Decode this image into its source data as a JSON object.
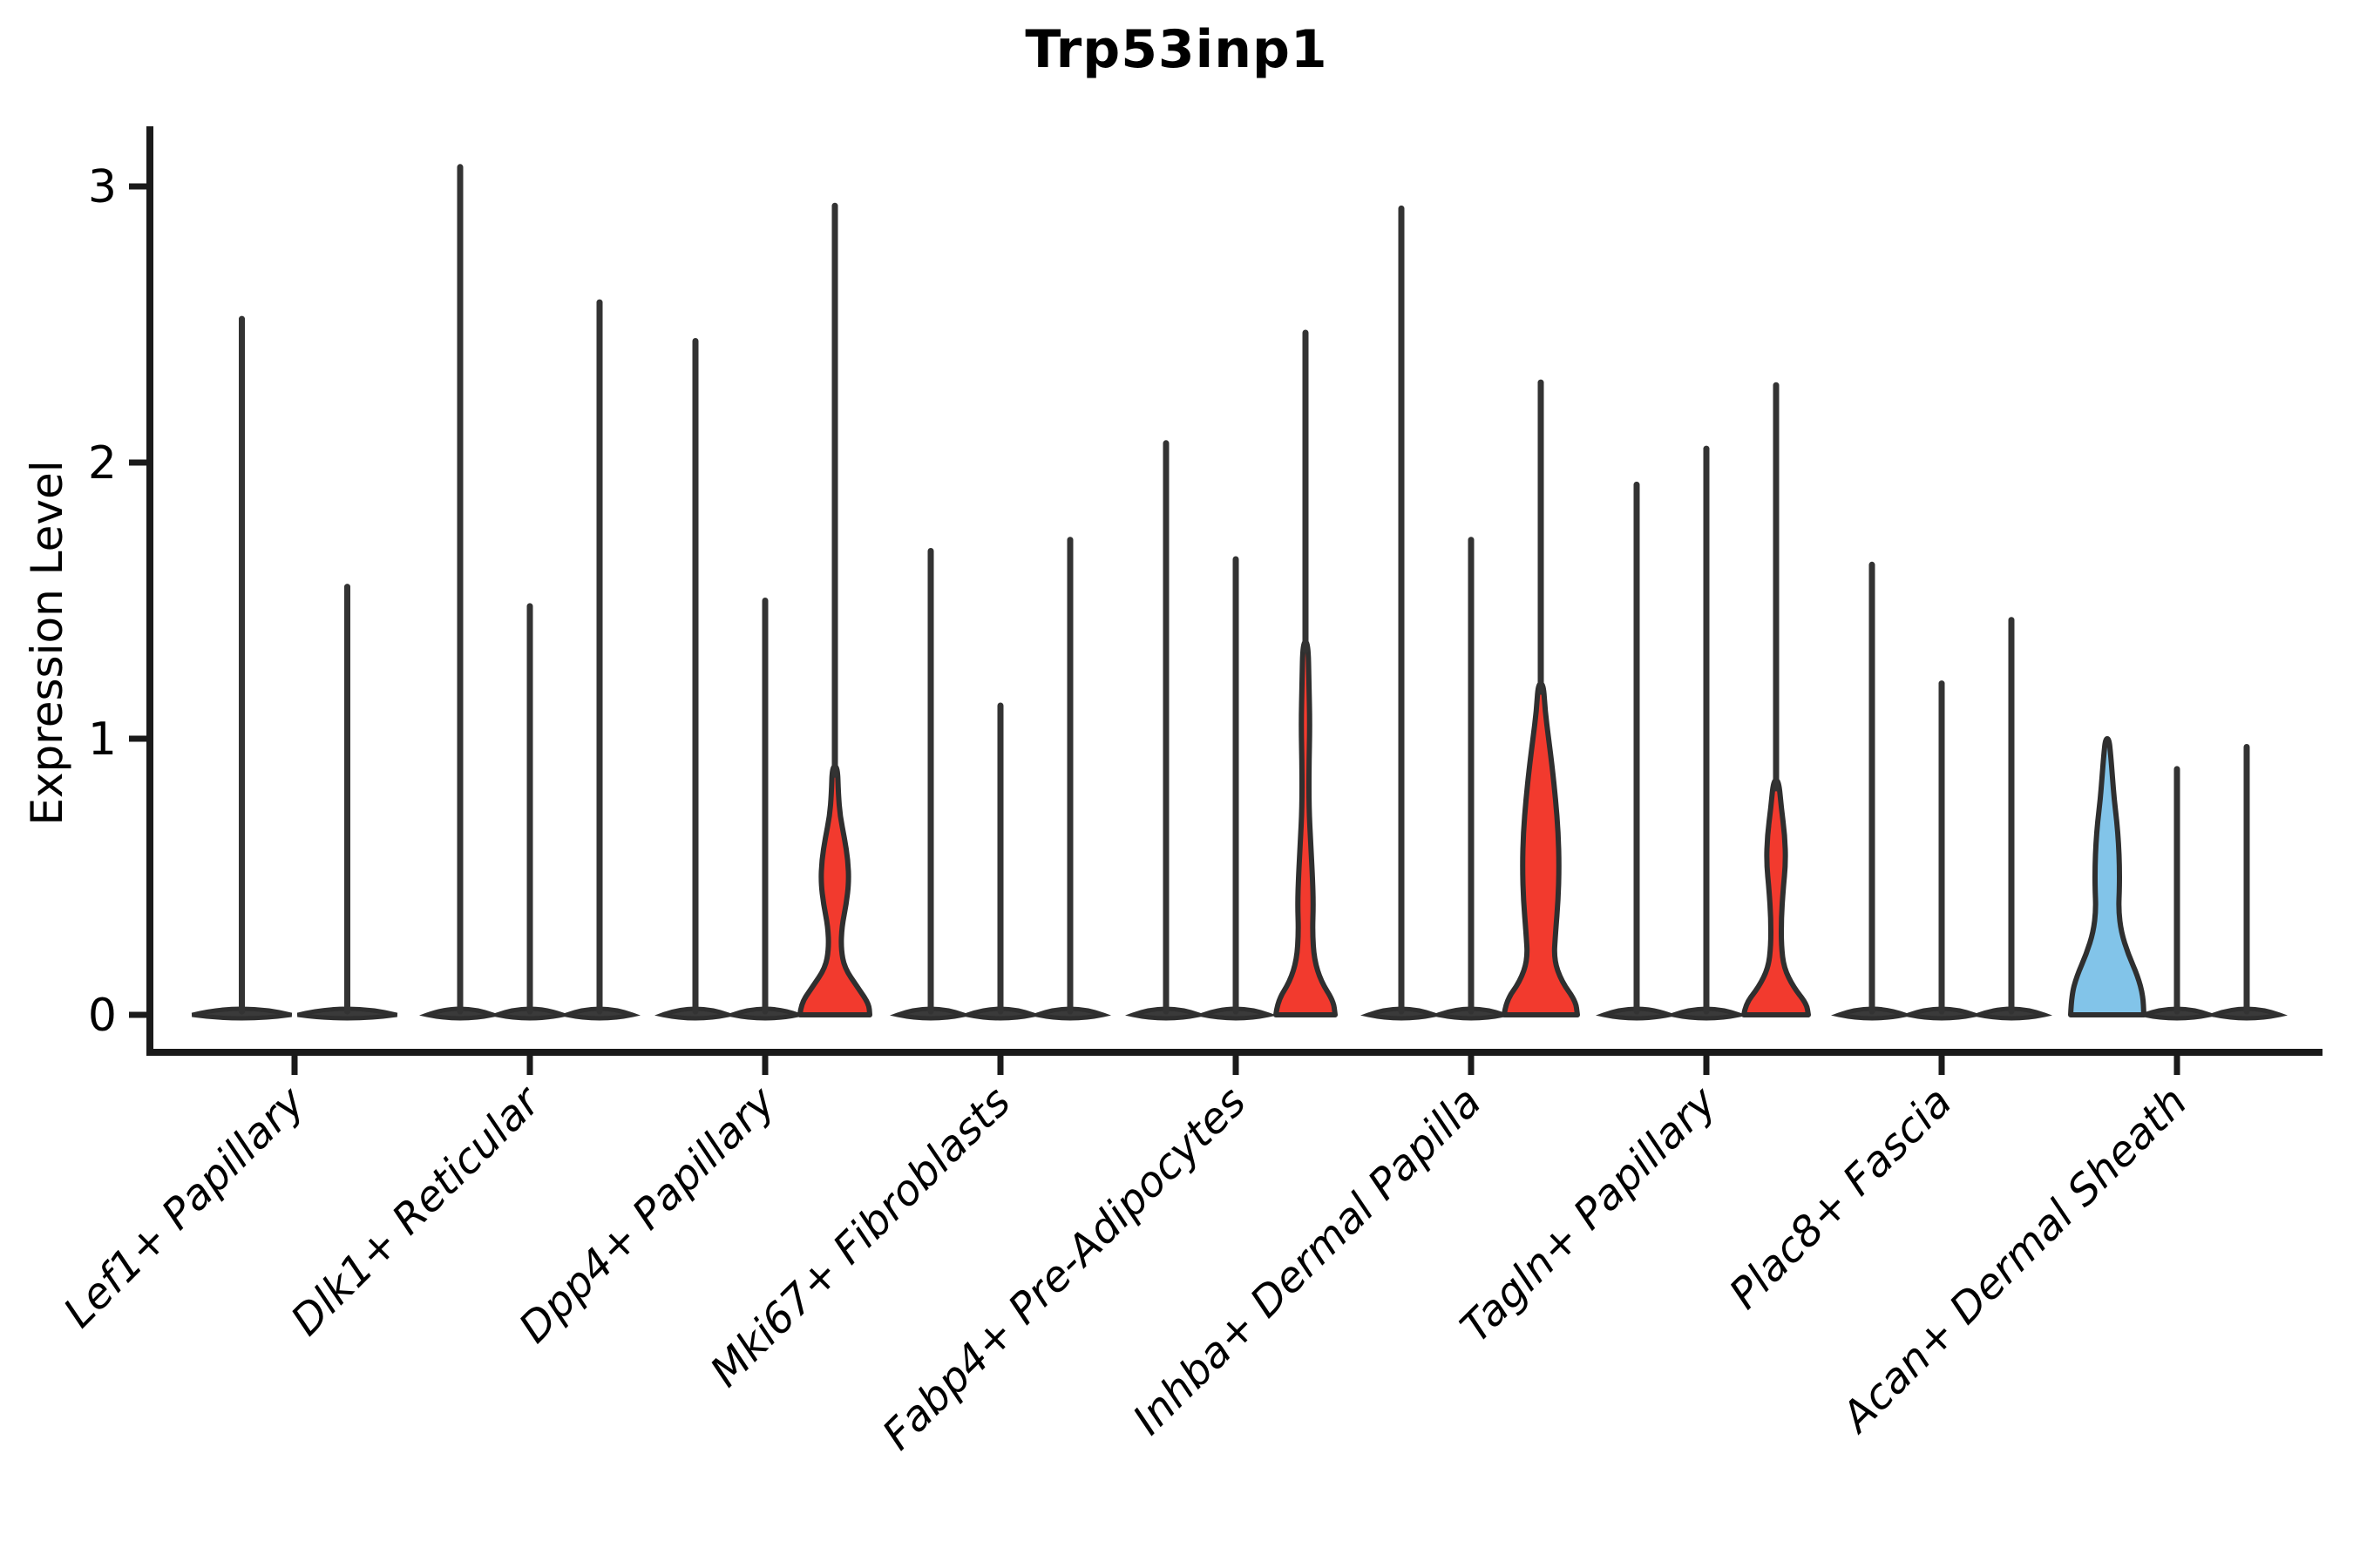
{
  "title": "Trp53inp1",
  "y_axis": {
    "label": "Expression Level",
    "ticks": [
      "0",
      "1",
      "2",
      "3"
    ]
  },
  "colors": {
    "red": "#F23A2E",
    "blue": "#82C4E9",
    "outline": "#2F2F2F",
    "spike": "#333333",
    "base_fill": "#3A3A3A",
    "axis": "#1A1A1A",
    "background": "#FFFFFF"
  },
  "chart_data": {
    "type": "violin",
    "title": "Trp53inp1",
    "xlabel": "",
    "ylabel": "Expression Level",
    "ylim": [
      0,
      3.2
    ],
    "yticks": [
      0,
      1,
      2,
      3
    ],
    "grid": false,
    "legend_position": "none",
    "categories": [
      "Lef1+ Papillary",
      "Dlk1+ Reticular",
      "Dpp4+ Papillary",
      "Mki67+ Fibroblasts",
      "Fabp4+ Pre-Adipocytes",
      "Inhba+ Dermal Papilla",
      "Tagln+ Papillary",
      "Plac8+ Fascia",
      "Acan+ Dermal Sheath"
    ],
    "groups": [
      {
        "category": "Lef1+ Papillary",
        "violins": [
          {
            "max": 2.52
          },
          {
            "max": 1.55
          }
        ]
      },
      {
        "category": "Dlk1+ Reticular",
        "violins": [
          {
            "max": 3.07
          },
          {
            "max": 1.48
          },
          {
            "max": 2.58
          }
        ]
      },
      {
        "category": "Dpp4+ Papillary",
        "violins": [
          {
            "max": 2.44
          },
          {
            "max": 1.5
          },
          {
            "max": 2.93,
            "color": "red",
            "shape": [
              [
                0,
                40
              ],
              [
                0.04,
                39
              ],
              [
                0.1,
                26
              ],
              [
                0.17,
                11
              ],
              [
                0.24,
                7
              ],
              [
                0.32,
                8
              ],
              [
                0.4,
                13
              ],
              [
                0.48,
                16
              ],
              [
                0.56,
                15
              ],
              [
                0.64,
                11
              ],
              [
                0.72,
                6
              ],
              [
                0.8,
                4
              ],
              [
                0.9,
                3
              ]
            ]
          }
        ]
      },
      {
        "category": "Mki67+ Fibroblasts",
        "violins": [
          {
            "max": 1.68
          },
          {
            "max": 1.12
          },
          {
            "max": 1.72
          }
        ]
      },
      {
        "category": "Fabp4+ Pre-Adipocytes",
        "violins": [
          {
            "max": 2.07
          },
          {
            "max": 1.65
          },
          {
            "max": 2.47,
            "color": "red",
            "shape": [
              [
                0,
                34
              ],
              [
                0.05,
                32
              ],
              [
                0.12,
                18
              ],
              [
                0.2,
                10
              ],
              [
                0.3,
                8
              ],
              [
                0.4,
                9
              ],
              [
                0.5,
                8
              ],
              [
                0.62,
                6
              ],
              [
                0.75,
                4
              ],
              [
                0.9,
                4
              ],
              [
                1.05,
                5
              ],
              [
                1.2,
                4
              ],
              [
                1.35,
                3
              ]
            ]
          }
        ]
      },
      {
        "category": "Inhba+ Dermal Papilla",
        "violins": [
          {
            "max": 2.92
          },
          {
            "max": 1.72
          },
          {
            "max": 2.29,
            "color": "red",
            "shape": [
              [
                0,
                42
              ],
              [
                0.05,
                40
              ],
              [
                0.12,
                24
              ],
              [
                0.2,
                15
              ],
              [
                0.3,
                17
              ],
              [
                0.42,
                20
              ],
              [
                0.54,
                21
              ],
              [
                0.66,
                20
              ],
              [
                0.78,
                17
              ],
              [
                0.9,
                13
              ],
              [
                1.0,
                9
              ],
              [
                1.1,
                5
              ],
              [
                1.2,
                3
              ]
            ]
          }
        ]
      },
      {
        "category": "Tagln+ Papillary",
        "violins": [
          {
            "max": 1.92
          },
          {
            "max": 2.05
          },
          {
            "max": 2.28,
            "color": "red",
            "shape": [
              [
                0,
                37
              ],
              [
                0.04,
                35
              ],
              [
                0.1,
                20
              ],
              [
                0.17,
                9
              ],
              [
                0.25,
                6
              ],
              [
                0.35,
                6
              ],
              [
                0.45,
                8
              ],
              [
                0.55,
                11
              ],
              [
                0.65,
                10
              ],
              [
                0.75,
                6
              ],
              [
                0.85,
                3
              ]
            ]
          }
        ]
      },
      {
        "category": "Plac8+ Fascia",
        "violins": [
          {
            "max": 1.63
          },
          {
            "max": 1.2
          },
          {
            "max": 1.43
          }
        ]
      },
      {
        "category": "Acan+ Dermal Sheath",
        "violins": [
          {
            "max": 1.02,
            "color": "blue",
            "shape": [
              [
                0,
                42
              ],
              [
                0.07,
                41
              ],
              [
                0.14,
                35
              ],
              [
                0.22,
                24
              ],
              [
                0.3,
                16
              ],
              [
                0.38,
                13
              ],
              [
                0.46,
                14
              ],
              [
                0.54,
                14
              ],
              [
                0.62,
                13
              ],
              [
                0.7,
                11
              ],
              [
                0.78,
                8
              ],
              [
                0.86,
                6
              ],
              [
                0.94,
                4
              ],
              [
                1.0,
                2
              ]
            ]
          },
          {
            "max": 0.89
          },
          {
            "max": 0.97
          }
        ]
      }
    ]
  }
}
